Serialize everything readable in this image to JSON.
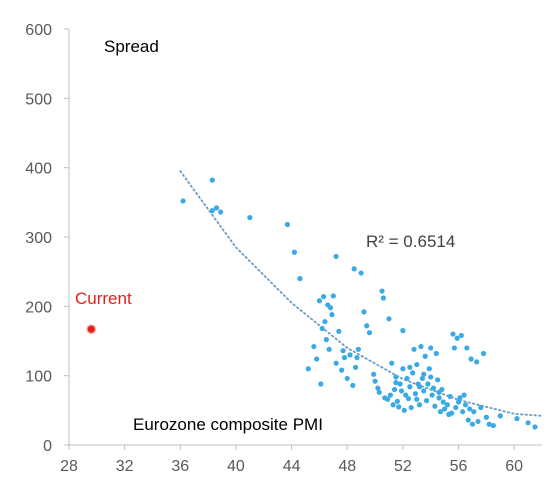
{
  "chart_data": {
    "type": "scatter",
    "ylabel": "Spread",
    "xlabel": "Eurozone composite PMI",
    "xlim": [
      28,
      62
    ],
    "ylim": [
      0,
      600
    ],
    "x_ticks": [
      "28",
      "32",
      "36",
      "40",
      "44",
      "48",
      "52",
      "56",
      "60"
    ],
    "y_ticks": [
      "0",
      "100",
      "200",
      "300",
      "400",
      "500",
      "600"
    ],
    "grid": false,
    "colors": {
      "points": "#3aa9e4",
      "trend": "#6a9bc4",
      "current": "#e32020",
      "axis": "#bfbfbf"
    },
    "annotations": {
      "r_squared": "R² = 0.6514",
      "current_label": "Current"
    },
    "current": {
      "x": 29.6,
      "y": 167
    },
    "trendline": {
      "type": "exponential",
      "points": [
        [
          36,
          395
        ],
        [
          40,
          285
        ],
        [
          44,
          205
        ],
        [
          48,
          140
        ],
        [
          52,
          95
        ],
        [
          56,
          65
        ],
        [
          60,
          45
        ],
        [
          62,
          42
        ]
      ]
    },
    "points": [
      [
        36.2,
        352
      ],
      [
        38.3,
        382
      ],
      [
        38.3,
        338
      ],
      [
        38.6,
        342
      ],
      [
        38.9,
        336
      ],
      [
        41.0,
        328
      ],
      [
        43.7,
        318
      ],
      [
        44.2,
        278
      ],
      [
        44.6,
        240
      ],
      [
        45.2,
        110
      ],
      [
        45.6,
        142
      ],
      [
        45.8,
        124
      ],
      [
        46.0,
        208
      ],
      [
        46.1,
        88
      ],
      [
        46.2,
        168
      ],
      [
        46.3,
        214
      ],
      [
        46.4,
        178
      ],
      [
        46.5,
        152
      ],
      [
        46.6,
        202
      ],
      [
        46.7,
        138
      ],
      [
        46.8,
        198
      ],
      [
        46.9,
        188
      ],
      [
        47.0,
        215
      ],
      [
        47.2,
        272
      ],
      [
        47.2,
        118
      ],
      [
        47.4,
        164
      ],
      [
        47.6,
        108
      ],
      [
        47.7,
        136
      ],
      [
        47.8,
        126
      ],
      [
        48.0,
        96
      ],
      [
        48.2,
        130
      ],
      [
        48.4,
        86
      ],
      [
        48.5,
        254
      ],
      [
        48.6,
        112
      ],
      [
        48.7,
        126
      ],
      [
        48.8,
        138
      ],
      [
        49.0,
        248
      ],
      [
        49.2,
        192
      ],
      [
        49.4,
        172
      ],
      [
        49.6,
        162
      ],
      [
        49.9,
        102
      ],
      [
        50.0,
        92
      ],
      [
        50.2,
        82
      ],
      [
        50.3,
        76
      ],
      [
        50.5,
        222
      ],
      [
        50.6,
        212
      ],
      [
        50.7,
        68
      ],
      [
        50.9,
        66
      ],
      [
        51.0,
        182
      ],
      [
        51.1,
        72
      ],
      [
        51.2,
        118
      ],
      [
        51.3,
        58
      ],
      [
        51.4,
        80
      ],
      [
        51.5,
        98
      ],
      [
        51.6,
        63
      ],
      [
        51.7,
        55
      ],
      [
        51.8,
        88
      ],
      [
        51.9,
        78
      ],
      [
        52.0,
        165
      ],
      [
        52.1,
        50
      ],
      [
        52.2,
        72
      ],
      [
        52.3,
        96
      ],
      [
        52.4,
        67
      ],
      [
        52.5,
        84
      ],
      [
        52.6,
        54
      ],
      [
        52.7,
        104
      ],
      [
        52.8,
        138
      ],
      [
        52.9,
        74
      ],
      [
        53.0,
        116
      ],
      [
        53.1,
        88
      ],
      [
        53.2,
        58
      ],
      [
        53.3,
        142
      ],
      [
        53.4,
        96
      ],
      [
        53.5,
        78
      ],
      [
        53.6,
        128
      ],
      [
        53.7,
        64
      ],
      [
        53.8,
        88
      ],
      [
        53.9,
        110
      ],
      [
        54.0,
        140
      ],
      [
        54.1,
        72
      ],
      [
        54.2,
        82
      ],
      [
        54.3,
        56
      ],
      [
        54.4,
        132
      ],
      [
        54.5,
        94
      ],
      [
        54.6,
        68
      ],
      [
        54.7,
        48
      ],
      [
        54.8,
        80
      ],
      [
        54.9,
        62
      ],
      [
        55.0,
        52
      ],
      [
        55.2,
        58
      ],
      [
        55.3,
        44
      ],
      [
        55.4,
        70
      ],
      [
        55.5,
        46
      ],
      [
        55.6,
        160
      ],
      [
        55.7,
        140
      ],
      [
        55.8,
        54
      ],
      [
        55.9,
        154
      ],
      [
        56.0,
        62
      ],
      [
        56.1,
        68
      ],
      [
        56.2,
        158
      ],
      [
        56.3,
        48
      ],
      [
        56.4,
        72
      ],
      [
        56.5,
        58
      ],
      [
        56.6,
        140
      ],
      [
        56.7,
        36
      ],
      [
        56.8,
        52
      ],
      [
        56.9,
        124
      ],
      [
        57.0,
        30
      ],
      [
        57.1,
        48
      ],
      [
        57.3,
        120
      ],
      [
        57.4,
        34
      ],
      [
        57.6,
        54
      ],
      [
        57.8,
        132
      ],
      [
        58.0,
        40
      ],
      [
        58.2,
        30
      ],
      [
        58.5,
        28
      ],
      [
        59.0,
        42
      ],
      [
        60.2,
        38
      ],
      [
        61.0,
        32
      ],
      [
        61.5,
        26
      ],
      [
        52.0,
        110
      ],
      [
        53.0,
        66
      ],
      [
        53.5,
        102
      ],
      [
        54.0,
        98
      ],
      [
        52.5,
        112
      ],
      [
        51.5,
        90
      ],
      [
        53.2,
        84
      ],
      [
        54.6,
        76
      ]
    ]
  }
}
